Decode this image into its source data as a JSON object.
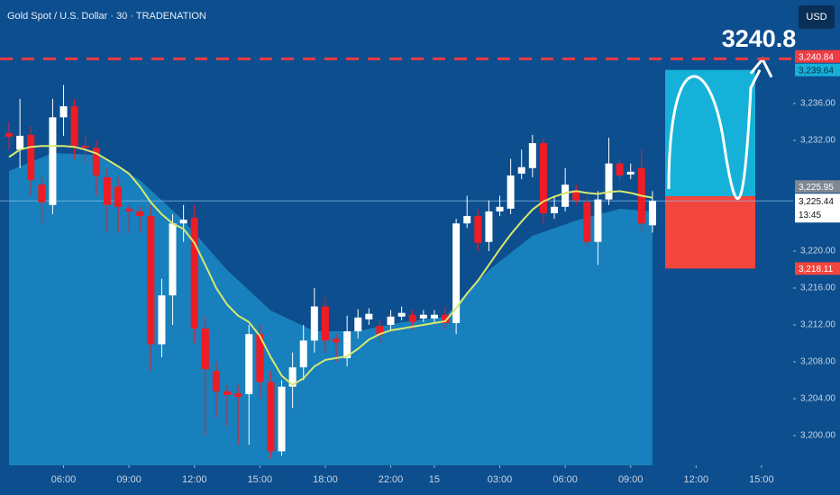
{
  "chart_data": {
    "type": "candlestick",
    "title": "Gold Spot / U.S. Dollar · 30 · TRADENATION",
    "currency": "USD",
    "annotation": "3240.8",
    "up_color": "#ffffff",
    "down_color": "#ee1c25",
    "open": [
      3232.8,
      3231,
      3232.6,
      3227.2,
      3225,
      3234.5,
      3235.7,
      3231.4,
      3231.2,
      3228,
      3227,
      3224.6,
      3224.3,
      3223.8,
      3209.9,
      3215.2,
      3223,
      3223.6,
      3211.6,
      3207,
      3204.8,
      3204.6,
      3204.5,
      3211,
      3205.8,
      3198.3,
      3205.3,
      3207.4,
      3210.3,
      3214,
      3210.5,
      3208.4,
      3211.3,
      3212.6,
      3211.9,
      3212,
      3212.9,
      3213.1,
      3212.7,
      3212.7,
      3213.1,
      3212.2,
      3223,
      3223.8,
      3221,
      3224.3,
      3224.6,
      3228.4,
      3229,
      3231.7,
      3224.1,
      3224.8,
      3226.6,
      3225.3,
      3221,
      3225.6,
      3229.5,
      3228.3,
      3229,
      3222.8
    ],
    "high": [
      3234,
      3236.5,
      3233.5,
      3228,
      3236.5,
      3238,
      3236.5,
      3232.5,
      3232,
      3229,
      3228,
      3225,
      3224.8,
      3225,
      3217,
      3224,
      3225,
      3225,
      3213,
      3208,
      3205.5,
      3205.5,
      3212,
      3212,
      3207,
      3206,
      3209,
      3212,
      3216,
      3215,
      3211,
      3213,
      3213.7,
      3213.8,
      3212.5,
      3213.6,
      3214,
      3213.6,
      3213.6,
      3213.6,
      3214,
      3223.5,
      3226,
      3224.5,
      3225.5,
      3226,
      3230,
      3231,
      3232.6,
      3232.2,
      3226,
      3229,
      3227.2,
      3226,
      3226.5,
      3232.3,
      3230,
      3229.5,
      3231,
      3226.5
    ],
    "low": [
      3231,
      3229,
      3226,
      3223,
      3224,
      3232.5,
      3230,
      3229.5,
      3226,
      3222,
      3222,
      3222,
      3222,
      3207,
      3208.5,
      3212,
      3221,
      3210,
      3200,
      3202,
      3201,
      3199,
      3199,
      3204,
      3197.5,
      3197.8,
      3203,
      3206,
      3209,
      3209,
      3208,
      3207.5,
      3210.5,
      3212,
      3210,
      3211.5,
      3212.5,
      3211.5,
      3212.3,
      3212.3,
      3211.5,
      3211,
      3222.5,
      3220,
      3220,
      3223.8,
      3224,
      3227.8,
      3228,
      3223,
      3223.5,
      3224.3,
      3225,
      3220.5,
      3218.5,
      3225,
      3227.5,
      3227.8,
      3222,
      3222
    ],
    "close": [
      3232.4,
      3232.5,
      3227.7,
      3225.3,
      3234.5,
      3235.7,
      3231.4,
      3231.2,
      3228.2,
      3225,
      3224.8,
      3224.3,
      3223.8,
      3209.9,
      3215.2,
      3223,
      3223.4,
      3211.6,
      3207.2,
      3204.8,
      3204.4,
      3204.2,
      3211,
      3205.8,
      3198.3,
      3205.3,
      3207.4,
      3210.3,
      3214,
      3210.3,
      3210.1,
      3211.3,
      3212.8,
      3213.2,
      3210.9,
      3212.9,
      3213.3,
      3212.3,
      3213.1,
      3213.1,
      3212.2,
      3223,
      3223.8,
      3220.9,
      3224.3,
      3224.8,
      3228.2,
      3229.1,
      3231.7,
      3224.1,
      3224.8,
      3227.2,
      3225.5,
      3221,
      3225.6,
      3229.5,
      3228.2,
      3228.6,
      3223,
      3225.44
    ],
    "ma": {
      "color": "#d8e86e",
      "values": [
        3230.2,
        3231,
        3231.3,
        3231.4,
        3231.4,
        3231.4,
        3231.3,
        3231,
        3230.6,
        3229.9,
        3229.2,
        3228.4,
        3227,
        3225.3,
        3224,
        3223,
        3222.4,
        3220.9,
        3218.5,
        3216,
        3214.2,
        3213,
        3212.3,
        3210.8,
        3208.5,
        3206.5,
        3205.5,
        3206.2,
        3207.5,
        3208.2,
        3208.4,
        3208.6,
        3209.4,
        3210.4,
        3211,
        3211.4,
        3211.6,
        3211.8,
        3212,
        3212.2,
        3212.4,
        3213.8,
        3215.4,
        3216.8,
        3218.5,
        3220.2,
        3221.8,
        3223.2,
        3224.5,
        3225.4,
        3225.9,
        3226.3,
        3226.5,
        3226.3,
        3226.2,
        3226.4,
        3226.5,
        3226.3,
        3226,
        3225.8
      ]
    },
    "band": {
      "color": "#1a86c1",
      "x": [
        0,
        4,
        8,
        12,
        16,
        20,
        24,
        28,
        32,
        36,
        40,
        42,
        44,
        48,
        52,
        56,
        59
      ],
      "values": [
        3228.68,
        3230.63,
        3230.44,
        3227.71,
        3223.32,
        3217.95,
        3213.56,
        3211.32,
        3211.32,
        3212.29,
        3212.88,
        3215.51,
        3217.95,
        3221.66,
        3223.32,
        3224.59,
        3224.29
      ]
    },
    "alert": {
      "value": 3240.84,
      "label": "3,240.84",
      "color": "#ee3b44"
    },
    "position": {
      "target": {
        "value": 3239.64,
        "label": "3,239.64",
        "color": "#16b1d8"
      },
      "entry": {
        "value": 3225.95,
        "label": "3,225.95",
        "color": "#7f8792"
      },
      "stop": {
        "value": 3218.11,
        "label": "3,218.11",
        "color": "#f2453d"
      }
    },
    "last": {
      "value": 3225.44,
      "label": "3,225.44",
      "countdown": "13:45"
    },
    "xlim": [
      -0.83,
      71.9
    ],
    "ylim": [
      3196.78,
      3247.22
    ],
    "xticks": [
      {
        "value": 5,
        "label": "06:00"
      },
      {
        "value": 11,
        "label": "09:00"
      },
      {
        "value": 17,
        "label": "12:00"
      },
      {
        "value": 23,
        "label": "15:00"
      },
      {
        "value": 29,
        "label": "18:00"
      },
      {
        "value": 35,
        "label": "22:00"
      },
      {
        "value": 39,
        "label": "15"
      },
      {
        "value": 45,
        "label": "03:00"
      },
      {
        "value": 51,
        "label": "06:00"
      },
      {
        "value": 57,
        "label": "09:00"
      },
      {
        "value": 63,
        "label": "12:00"
      },
      {
        "value": 69,
        "label": "15:00"
      }
    ],
    "yticks": [
      {
        "value": 3236,
        "label": "3,236.00"
      },
      {
        "value": 3232,
        "label": "3,232.00"
      },
      {
        "value": 3220,
        "label": "3,220.00"
      },
      {
        "value": 3216,
        "label": "3,216.00"
      },
      {
        "value": 3212,
        "label": "3,212.00"
      },
      {
        "value": 3208,
        "label": "3,208.00"
      },
      {
        "value": 3204,
        "label": "3,204.00"
      },
      {
        "value": 3200,
        "label": "3,200.00"
      }
    ],
    "grid": false
  }
}
